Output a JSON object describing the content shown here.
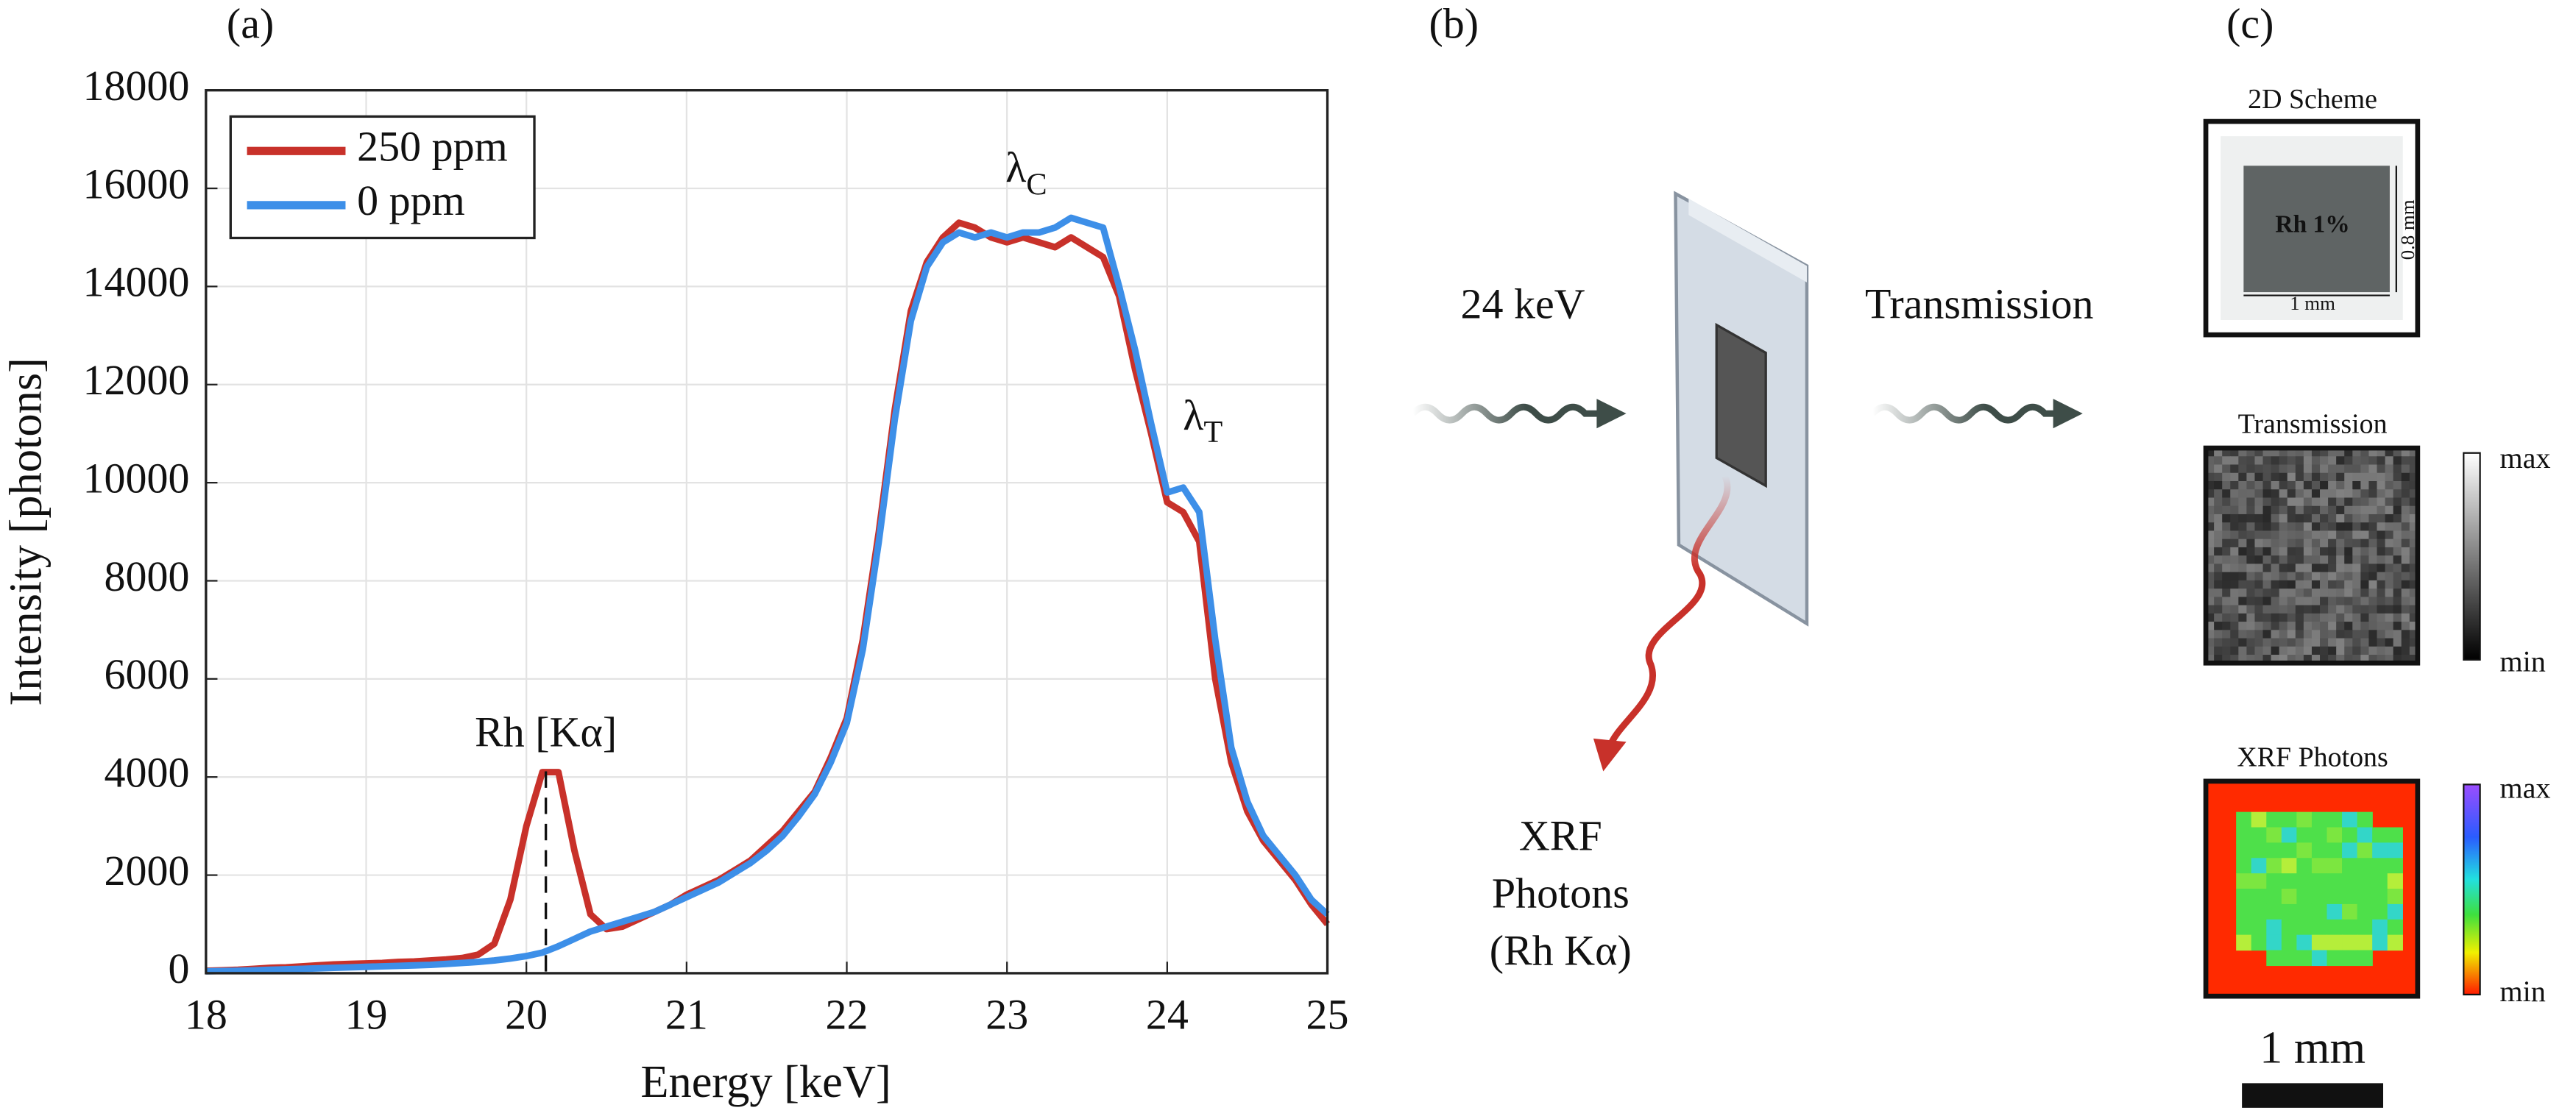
{
  "chart_data": {
    "type": "line",
    "panel_label": "(a)",
    "xlabel": "Energy [keV]",
    "ylabel": "Intensity [photons]",
    "xlim": [
      18,
      25
    ],
    "ylim": [
      0,
      18000
    ],
    "xticks": [
      18,
      19,
      20,
      21,
      22,
      23,
      24,
      25
    ],
    "yticks": [
      0,
      2000,
      4000,
      6000,
      8000,
      10000,
      12000,
      14000,
      16000,
      18000
    ],
    "grid": true,
    "legend": "upper left",
    "annotations": [
      {
        "text": "Rh [Kα]"
      },
      {
        "text": "λ",
        "sub": "C"
      },
      {
        "text": "λ",
        "sub": "T"
      }
    ],
    "x": [
      18.0,
      18.1,
      18.2,
      18.3,
      18.4,
      18.5,
      18.6,
      18.7,
      18.8,
      18.9,
      19.0,
      19.1,
      19.2,
      19.3,
      19.4,
      19.5,
      19.6,
      19.7,
      19.8,
      19.9,
      20.0,
      20.1,
      20.2,
      20.3,
      20.4,
      20.5,
      20.6,
      20.7,
      20.8,
      20.9,
      21.0,
      21.1,
      21.2,
      21.3,
      21.4,
      21.5,
      21.6,
      21.7,
      21.8,
      21.9,
      22.0,
      22.1,
      22.2,
      22.3,
      22.4,
      22.5,
      22.6,
      22.7,
      22.8,
      22.9,
      23.0,
      23.1,
      23.2,
      23.3,
      23.4,
      23.5,
      23.6,
      23.7,
      23.8,
      23.9,
      24.0,
      24.1,
      24.2,
      24.3,
      24.4,
      24.5,
      24.6,
      24.7,
      24.8,
      24.9,
      25.0
    ],
    "series": [
      {
        "name": "250 ppm",
        "color": "#c8312a",
        "values": [
          50,
          60,
          70,
          90,
          110,
          120,
          140,
          160,
          180,
          190,
          200,
          210,
          230,
          240,
          260,
          280,
          310,
          380,
          600,
          1500,
          3000,
          4100,
          4100,
          2500,
          1200,
          900,
          950,
          1100,
          1250,
          1400,
          1600,
          1750,
          1900,
          2100,
          2300,
          2600,
          2900,
          3300,
          3700,
          4400,
          5200,
          6800,
          9000,
          11500,
          13500,
          14500,
          15000,
          15300,
          15200,
          15000,
          14900,
          15000,
          14900,
          14800,
          15000,
          14800,
          14600,
          13800,
          12300,
          11000,
          9600,
          9400,
          8800,
          6000,
          4300,
          3300,
          2700,
          2300,
          1900,
          1400,
          1000
        ]
      },
      {
        "name": "0 ppm",
        "color": "#3d8fe8",
        "values": [
          40,
          45,
          50,
          60,
          70,
          80,
          90,
          100,
          110,
          120,
          130,
          140,
          150,
          160,
          170,
          190,
          210,
          230,
          260,
          300,
          350,
          420,
          550,
          700,
          850,
          950,
          1050,
          1150,
          1250,
          1400,
          1550,
          1700,
          1850,
          2050,
          2250,
          2500,
          2800,
          3200,
          3650,
          4300,
          5100,
          6600,
          8800,
          11300,
          13300,
          14400,
          14900,
          15100,
          15000,
          15100,
          15000,
          15100,
          15100,
          15200,
          15400,
          15300,
          15200,
          14000,
          12700,
          11200,
          9800,
          9900,
          9400,
          6800,
          4600,
          3500,
          2800,
          2400,
          2000,
          1500,
          1200
        ]
      }
    ]
  },
  "diagram": {
    "label": "(b)",
    "incident": "24 keV",
    "transmitted": "Transmission",
    "xrf": [
      "XRF",
      "Photons",
      "(Rh Kα)"
    ]
  },
  "panel_c": {
    "label": "(c)",
    "scheme": {
      "title": "2D Scheme",
      "sample": "Rh 1%",
      "height": "0.8 mm",
      "width": "1 mm"
    },
    "transmission": {
      "title": "Transmission",
      "max": "max",
      "min": "min"
    },
    "xrf": {
      "title": "XRF Photons",
      "max": "max",
      "min": "min"
    },
    "scale_bar": "1 mm"
  }
}
